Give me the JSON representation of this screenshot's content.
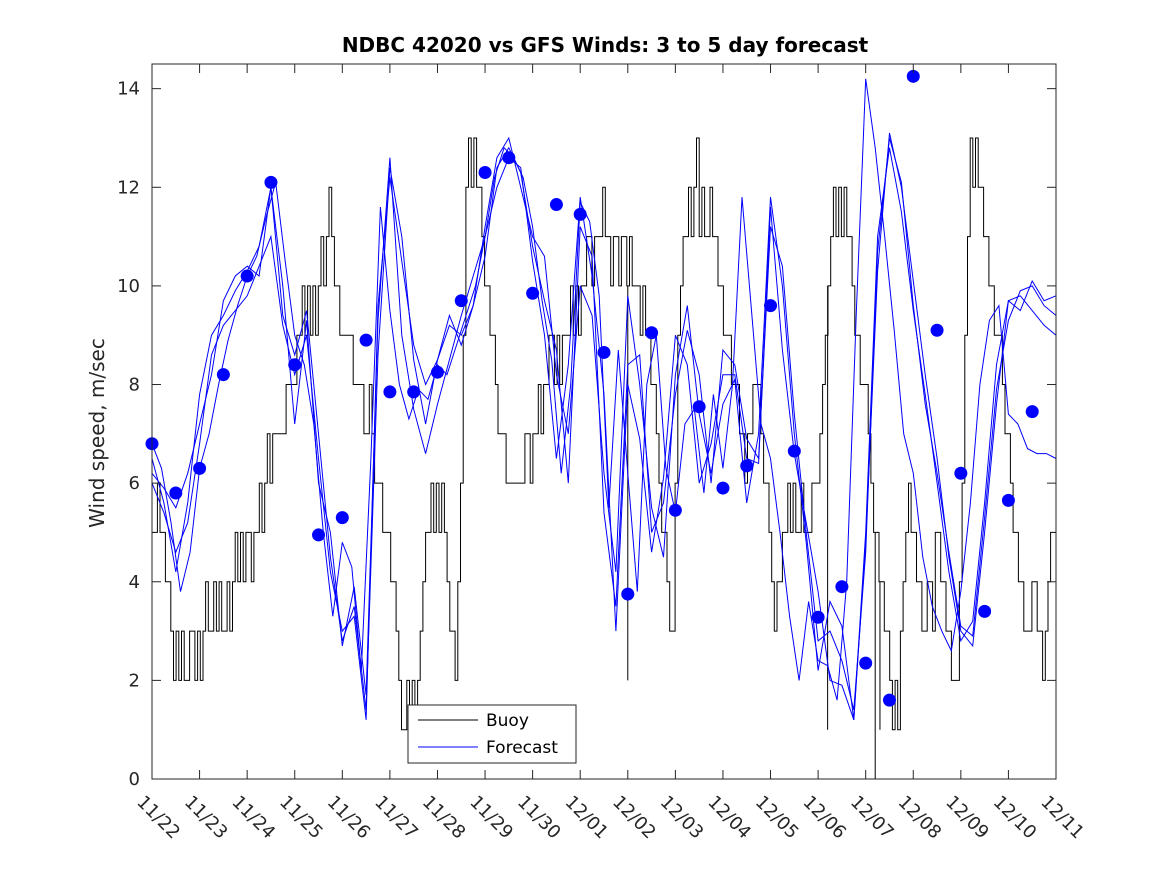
{
  "chart_data": {
    "type": "line",
    "title": "NDBC 42020 vs GFS Winds: 3 to 5 day forecast",
    "xlabel": "",
    "ylabel": "Wind speed, m/sec",
    "ylim": [
      0,
      14.5
    ],
    "yticks": [
      0,
      2,
      4,
      6,
      8,
      10,
      12,
      14
    ],
    "xlim": [
      0,
      19
    ],
    "xtick_labels": [
      "11/22",
      "11/23",
      "11/24",
      "11/25",
      "11/26",
      "11/27",
      "11/28",
      "11/29",
      "11/30",
      "12/01",
      "12/02",
      "12/03",
      "12/04",
      "12/05",
      "12/06",
      "12/07",
      "12/08",
      "12/09",
      "12/10",
      "12/11"
    ],
    "legend": {
      "position": "bottom-center",
      "entries": [
        "Buoy",
        "Forecast"
      ]
    },
    "colors": {
      "buoy": "#000000",
      "forecast": "#0000ff",
      "axes": "#262626"
    },
    "buoy_hourly": [
      5,
      5,
      6,
      5,
      5,
      4,
      4,
      3,
      2,
      3,
      2,
      3,
      2,
      2,
      3,
      3,
      2,
      3,
      2,
      3,
      4,
      3,
      3,
      4,
      3,
      4,
      3,
      3,
      4,
      3,
      4,
      5,
      4,
      5,
      4,
      5,
      5,
      4,
      5,
      5,
      6,
      5,
      6,
      7,
      6,
      7,
      7,
      7,
      7,
      7,
      8,
      8,
      8,
      8,
      9,
      9,
      10,
      9,
      10,
      9,
      10,
      9,
      10,
      11,
      10,
      11,
      12,
      11,
      10,
      10,
      9,
      9,
      9,
      9,
      9,
      8,
      8,
      8,
      8,
      7,
      7,
      8,
      7,
      6,
      6,
      6,
      5,
      5,
      5,
      4,
      4,
      3,
      2,
      1,
      1,
      2,
      1,
      2,
      1,
      2,
      3,
      4,
      5,
      5,
      6,
      5,
      6,
      5,
      6,
      5,
      4,
      3,
      3,
      2,
      4,
      6,
      9,
      12,
      13,
      12,
      13,
      12,
      12,
      11,
      10,
      10,
      9,
      9,
      8,
      7,
      7,
      7,
      6,
      6,
      6,
      6,
      6,
      6,
      6,
      7,
      7,
      6,
      7,
      7,
      8,
      7,
      8,
      8,
      9,
      9,
      8,
      9,
      8,
      9,
      9,
      9,
      10,
      9,
      10,
      9,
      10,
      10,
      11,
      11,
      10,
      11,
      11,
      11,
      12,
      11,
      11,
      10,
      11,
      11,
      10,
      11,
      11,
      10,
      11,
      10,
      10,
      10,
      9,
      10,
      9,
      9,
      8,
      8,
      7,
      6,
      5,
      5,
      4,
      3,
      3,
      6,
      9,
      10,
      11,
      11,
      12,
      11,
      12,
      13,
      11,
      12,
      11,
      11,
      12,
      11,
      11,
      10,
      10,
      9,
      9,
      9,
      8,
      8,
      8,
      7,
      7,
      6,
      7,
      7,
      8,
      8,
      8,
      7,
      6,
      6,
      5,
      4,
      3,
      4,
      4,
      5,
      5,
      6,
      5,
      6,
      5,
      5,
      6,
      5,
      5,
      5,
      6,
      6,
      6,
      7,
      8,
      9,
      10,
      11,
      12,
      11,
      12,
      11,
      12,
      11,
      11,
      10,
      9,
      9,
      8,
      8,
      8,
      7,
      6,
      5,
      5,
      4,
      4,
      3,
      3,
      2,
      1,
      2,
      1,
      3,
      4,
      5,
      6,
      5,
      5,
      4,
      4,
      3,
      3,
      4,
      4,
      3,
      5,
      5,
      4,
      4,
      3,
      3,
      2,
      2,
      2,
      4,
      6,
      9,
      11,
      13,
      12,
      13,
      12,
      12,
      11,
      11,
      10,
      10,
      9,
      9,
      9,
      8,
      7,
      7,
      6,
      5,
      5,
      4,
      4,
      3,
      3,
      3,
      4,
      4,
      3,
      3,
      2,
      3,
      4,
      5,
      5,
      6
    ],
    "buoy_dips": [
      [
        10.0,
        2
      ],
      [
        14.2,
        1
      ],
      [
        15.2,
        0
      ],
      [
        15.3,
        1
      ]
    ],
    "forecast_series": [
      {
        "name": "run1",
        "x": [
          0,
          0.2,
          0.4,
          0.6,
          0.8,
          1.0,
          1.2,
          1.4,
          1.6,
          1.8,
          2.0,
          2.2,
          2.4,
          2.6,
          2.8,
          3.0,
          3.2,
          3.4,
          3.6,
          3.8,
          4.0,
          4.2,
          4.4,
          4.6,
          4.8,
          5.0,
          5.2,
          5.4,
          5.6,
          5.8,
          6.0,
          6.2,
          6.4,
          6.6,
          6.8,
          7.0,
          7.2,
          7.4,
          7.6,
          7.8,
          8.0,
          8.2,
          8.4,
          8.6,
          8.8,
          9.0,
          9.2,
          9.4,
          9.6,
          9.8,
          10.0,
          10.2,
          10.4,
          10.6,
          10.8,
          11.0,
          11.2,
          11.4,
          11.6,
          11.8,
          12.0,
          12.2,
          12.4,
          12.6,
          12.8,
          13.0,
          13.2,
          13.4,
          13.6,
          13.8,
          14.0,
          14.2,
          14.4,
          14.6,
          14.8,
          15.0,
          15.2,
          15.4,
          15.6,
          15.8,
          16.0,
          16.2,
          16.4,
          16.6,
          16.8,
          17.0,
          17.2,
          17.4,
          17.6,
          17.8,
          18.0,
          18.2,
          18.4,
          18.6,
          18.8,
          19.0
        ],
        "y": [
          6.8,
          6.3,
          5.2,
          3.8,
          4.6,
          6.3,
          7.0,
          8.0,
          8.9,
          9.6,
          10.2,
          10.6,
          11.4,
          12.1,
          10.5,
          9.0,
          8.4,
          7.2,
          5.0,
          3.3,
          4.8,
          4.3,
          2.2,
          6.5,
          11.6,
          9.5,
          8.0,
          7.3,
          7.9,
          7.7,
          8.4,
          8.2,
          8.8,
          9.4,
          10.0,
          11.0,
          12.2,
          12.8,
          12.6,
          12.2,
          11.2,
          9.7,
          8.5,
          6.2,
          8.0,
          11.7,
          11.3,
          9.8,
          5.5,
          8.7,
          6.2,
          3.8,
          8.0,
          9.0,
          6.3,
          5.4,
          7.2,
          7.5,
          5.8,
          7.8,
          6.3,
          8.0,
          11.8,
          9.5,
          7.2,
          6.5,
          5.0,
          3.3,
          2.0,
          3.6,
          2.4,
          2.3,
          1.6,
          4.0,
          9.4,
          14.2,
          12.8,
          11.0,
          9.1,
          7.0,
          6.2,
          4.5,
          3.5,
          3.0,
          2.6,
          3.8,
          5.6,
          8.0,
          9.3,
          9.6,
          7.4,
          7.2,
          6.7,
          6.6,
          6.6,
          6.5
        ]
      },
      {
        "name": "run2",
        "x": [
          0,
          0.25,
          0.5,
          0.75,
          1.0,
          1.25,
          1.5,
          1.75,
          2.0,
          2.25,
          2.5,
          2.75,
          3.0,
          3.25,
          3.5,
          3.75,
          4.0,
          4.25,
          4.5,
          4.75,
          5.0,
          5.25,
          5.5,
          5.75,
          6.0,
          6.25,
          6.5,
          6.75,
          7.0,
          7.25,
          7.5,
          7.75,
          8.0,
          8.25,
          8.5,
          8.75,
          9.0,
          9.25,
          9.5,
          9.75,
          10.0,
          10.25,
          10.5,
          10.75,
          11.0,
          11.25,
          11.5,
          11.75,
          12.0,
          12.25,
          12.5,
          12.75,
          13.0,
          13.25,
          13.5,
          13.75,
          14.0,
          14.25,
          14.5,
          14.75,
          15.0,
          15.25,
          15.5,
          15.75,
          16.0,
          16.25,
          16.5,
          16.75,
          17.0,
          17.25,
          17.5,
          17.75,
          18.0,
          18.25,
          18.5,
          18.75,
          19.0
        ],
        "y": [
          6.5,
          5.6,
          4.2,
          5.6,
          7.8,
          9.0,
          9.4,
          9.9,
          10.3,
          10.8,
          12.0,
          9.4,
          8.6,
          9.5,
          7.0,
          4.5,
          2.8,
          3.5,
          1.4,
          8.6,
          12.4,
          11.0,
          8.5,
          7.2,
          8.5,
          9.4,
          8.8,
          9.6,
          11.2,
          12.6,
          13.0,
          12.0,
          11.0,
          10.6,
          8.2,
          7.0,
          10.0,
          9.4,
          6.2,
          4.2,
          9.8,
          8.0,
          5.5,
          4.5,
          8.2,
          9.6,
          7.4,
          6.2,
          7.6,
          8.1,
          5.6,
          7.0,
          11.8,
          10.0,
          7.0,
          4.8,
          2.2,
          3.6,
          3.1,
          1.2,
          4.8,
          10.3,
          13.1,
          12.0,
          10.1,
          8.2,
          6.5,
          4.5,
          3.0,
          2.7,
          5.0,
          7.6,
          9.7,
          9.5,
          10.1,
          9.7,
          9.8
        ]
      },
      {
        "name": "run3",
        "x": [
          0,
          0.25,
          0.5,
          0.75,
          1.0,
          1.25,
          1.5,
          1.75,
          2.0,
          2.25,
          2.5,
          2.75,
          3.0,
          3.25,
          3.5,
          3.75,
          4.0,
          4.25,
          4.5,
          4.75,
          5.0,
          5.25,
          5.5,
          5.75,
          6.0,
          6.25,
          6.5,
          6.75,
          7.0,
          7.25,
          7.5,
          7.75,
          8.0,
          8.25,
          8.5,
          8.75,
          9.0,
          9.25,
          9.5,
          9.75,
          10.0,
          10.25,
          10.5,
          10.75,
          11.0,
          11.25,
          11.5,
          11.75,
          12.0,
          12.25,
          12.5,
          12.75,
          13.0,
          13.25,
          13.5,
          13.75,
          14.0,
          14.25,
          14.5,
          14.75,
          15.0,
          15.25,
          15.5,
          15.75,
          16.0,
          16.25,
          16.5,
          16.75,
          17.0,
          17.25,
          17.5,
          17.75,
          18.0,
          18.25,
          18.5,
          18.75,
          19.0
        ],
        "y": [
          6.2,
          5.9,
          5.5,
          6.2,
          7.2,
          8.2,
          9.7,
          10.2,
          10.4,
          10.2,
          12.0,
          10.0,
          7.2,
          9.3,
          6.0,
          5.0,
          2.7,
          3.9,
          1.7,
          9.3,
          12.6,
          9.0,
          7.5,
          6.6,
          7.6,
          8.5,
          9.4,
          10.2,
          11.0,
          12.0,
          12.6,
          12.4,
          10.5,
          9.0,
          6.5,
          8.4,
          11.8,
          10.2,
          7.8,
          3.0,
          8.0,
          6.9,
          4.6,
          6.1,
          9.0,
          8.4,
          6.0,
          6.8,
          8.2,
          8.2,
          6.5,
          6.4,
          11.6,
          8.7,
          6.6,
          5.2,
          3.8,
          2.0,
          1.9,
          1.2,
          5.0,
          11.0,
          12.8,
          11.5,
          9.5,
          7.8,
          6.0,
          4.2,
          2.8,
          3.2,
          5.6,
          8.4,
          9.7,
          9.8,
          9.5,
          9.2,
          9.0
        ]
      },
      {
        "name": "run4",
        "x": [
          0,
          0.25,
          0.5,
          0.75,
          1.0,
          1.25,
          1.5,
          1.75,
          2.0,
          2.25,
          2.5,
          2.75,
          3.0,
          3.25,
          3.5,
          3.75,
          4.0,
          4.25,
          4.5,
          4.75,
          5.0,
          5.25,
          5.5,
          5.75,
          6.0,
          6.25,
          6.5,
          6.75,
          7.0,
          7.25,
          7.5,
          7.75,
          8.0,
          8.25,
          8.5,
          8.75,
          9.0,
          9.25,
          9.5,
          9.75,
          10.0,
          10.25,
          10.5,
          10.75,
          11.0,
          11.25,
          11.5,
          11.75,
          12.0,
          12.25,
          12.5,
          12.75,
          13.0,
          13.25,
          13.5,
          13.75,
          14.0,
          14.25,
          14.5,
          14.75,
          15.0,
          15.25,
          15.5,
          15.75,
          16.0,
          16.25,
          16.5,
          16.75,
          17.0,
          17.25,
          17.5,
          17.75,
          18.0,
          18.25,
          18.5,
          18.75,
          19.0
        ],
        "y": [
          6.0,
          5.4,
          4.6,
          5.2,
          6.8,
          8.6,
          9.2,
          9.5,
          9.8,
          10.4,
          11.0,
          9.2,
          8.2,
          9.0,
          6.5,
          4.2,
          3.0,
          3.3,
          1.2,
          9.6,
          12.2,
          10.5,
          8.8,
          8.0,
          8.5,
          9.2,
          9.0,
          9.6,
          10.6,
          12.4,
          12.8,
          12.3,
          10.8,
          9.7,
          8.7,
          6.0,
          11.2,
          10.6,
          5.4,
          3.5,
          8.4,
          8.6,
          5.0,
          5.6,
          7.8,
          9.1,
          8.2,
          6.0,
          8.7,
          8.4,
          6.9,
          6.5,
          11.2,
          10.4,
          7.4,
          5.0,
          2.8,
          3.0,
          2.4,
          1.4,
          4.6,
          10.7,
          13.0,
          12.1,
          9.6,
          7.6,
          6.2,
          4.6,
          3.1,
          2.9,
          5.3,
          7.9,
          9.3,
          9.9,
          10.0,
          9.6,
          9.4
        ]
      }
    ],
    "forecast_markers": {
      "x": [
        0,
        0.5,
        1.0,
        1.5,
        2.0,
        2.5,
        3.0,
        3.5,
        4.0,
        4.5,
        5.0,
        5.5,
        6.0,
        6.5,
        7.0,
        7.5,
        8.0,
        8.5,
        9.0,
        9.5,
        10.0,
        10.5,
        11.0,
        11.5,
        12.0,
        12.5,
        13.0,
        13.5,
        14.0,
        14.5,
        15.0,
        15.5,
        16.0,
        16.5,
        17.0,
        17.5,
        18.0,
        18.5
      ],
      "y": [
        6.8,
        5.8,
        6.3,
        8.2,
        10.2,
        12.1,
        8.4,
        4.95,
        5.3,
        8.9,
        7.85,
        7.85,
        8.25,
        9.7,
        12.3,
        12.6,
        9.85,
        11.65,
        11.45,
        8.65,
        3.75,
        9.05,
        5.45,
        7.55,
        5.9,
        6.35,
        9.6,
        6.65,
        3.28,
        3.9,
        2.35,
        1.6,
        14.25,
        9.1,
        6.2,
        3.4,
        5.65,
        7.45
      ]
    }
  }
}
